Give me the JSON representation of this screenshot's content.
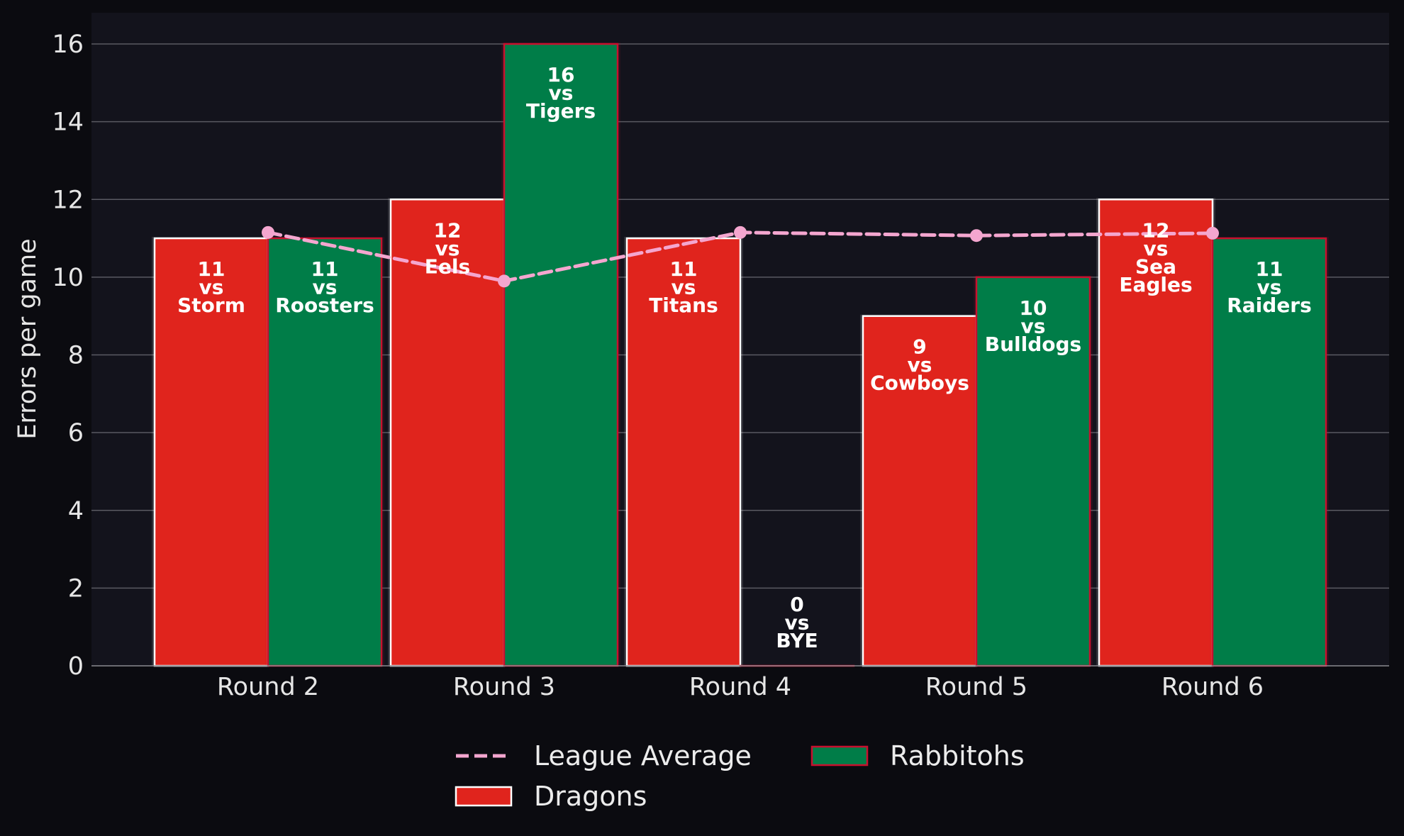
{
  "chart_data": {
    "type": "bar",
    "categories": [
      "Round 2",
      "Round 3",
      "Round 4",
      "Round 5",
      "Round 6"
    ],
    "ylabel": "Errors per game",
    "xlabel": "",
    "ylim": [
      0,
      16.8
    ],
    "yticks": [
      0,
      2,
      4,
      6,
      8,
      10,
      12,
      14,
      16
    ],
    "grid": "horizontal",
    "legend_position": "bottom-center",
    "series": [
      {
        "name": "Dragons",
        "color": "#e0241d",
        "values": [
          11,
          12,
          11,
          9,
          12
        ],
        "opponents": [
          "Storm",
          "Eels",
          "Titans",
          "Cowboys",
          "Sea Eagles"
        ]
      },
      {
        "name": "Rabbitohs",
        "color": "#007d48",
        "values": [
          11,
          16,
          0,
          10,
          11
        ],
        "opponents": [
          "Roosters",
          "Tigers",
          "BYE",
          "Bulldogs",
          "Raiders"
        ]
      }
    ],
    "line_series": {
      "name": "League Average",
      "color": "#f4a6cf",
      "style": "dashed",
      "values": [
        11.15,
        9.9,
        11.15,
        11.07,
        11.13
      ]
    },
    "vs_text": "vs",
    "legend": [
      "League Average",
      "Rabbitohs",
      "Dragons"
    ]
  }
}
